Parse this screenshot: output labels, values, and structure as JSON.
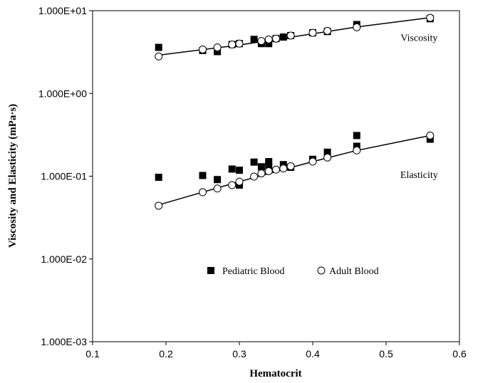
{
  "chart_data": {
    "type": "scatter",
    "scale": {
      "x": "linear",
      "y": "log"
    },
    "grid": false,
    "xlabel": "Hematocrit",
    "ylabel": "Viscosity and Elasticity (mPa·s)",
    "xlim": [
      0.1,
      0.6
    ],
    "ylim": [
      0.001,
      10
    ],
    "x_ticks": [
      0.1,
      0.2,
      0.3,
      0.4,
      0.5,
      0.6
    ],
    "x_tick_labels": [
      "0.1",
      "0.2",
      "0.3",
      "0.4",
      "0.5",
      "0.6"
    ],
    "y_ticks": [
      0.001,
      0.01,
      0.1,
      1,
      10
    ],
    "y_tick_labels": [
      "1.000E-03",
      "1.000E-02",
      "1.000E-01",
      "1.000E+00",
      "1.000E+01"
    ],
    "annotations": [
      {
        "text": "Viscosity",
        "x": 0.545,
        "y": 4.3
      },
      {
        "text": "Elasticity",
        "x": 0.545,
        "y": 0.095
      }
    ],
    "legend_position": "bottom-center",
    "series": [
      {
        "name": "Pediatric Blood",
        "marker": "square-filled",
        "color": "#000000",
        "points": [
          [
            0.19,
            3.6
          ],
          [
            0.25,
            3.3
          ],
          [
            0.27,
            3.2
          ],
          [
            0.29,
            3.9
          ],
          [
            0.3,
            4.0
          ],
          [
            0.32,
            4.5
          ],
          [
            0.33,
            4.0
          ],
          [
            0.34,
            4.0
          ],
          [
            0.35,
            4.6
          ],
          [
            0.36,
            4.8
          ],
          [
            0.37,
            5.0
          ],
          [
            0.4,
            5.4
          ],
          [
            0.42,
            5.6
          ],
          [
            0.46,
            6.8
          ],
          [
            0.56,
            8.0
          ],
          [
            0.19,
            0.097
          ],
          [
            0.25,
            0.102
          ],
          [
            0.27,
            0.091
          ],
          [
            0.29,
            0.122
          ],
          [
            0.3,
            0.118
          ],
          [
            0.3,
            0.078
          ],
          [
            0.32,
            0.148
          ],
          [
            0.33,
            0.13
          ],
          [
            0.34,
            0.15
          ],
          [
            0.34,
            0.135
          ],
          [
            0.36,
            0.138
          ],
          [
            0.37,
            0.128
          ],
          [
            0.4,
            0.16
          ],
          [
            0.42,
            0.195
          ],
          [
            0.46,
            0.31
          ],
          [
            0.46,
            0.23
          ],
          [
            0.56,
            0.28
          ]
        ]
      },
      {
        "name": "Adult Blood",
        "marker": "circle-open",
        "color": "#000000",
        "points": [
          [
            0.19,
            2.8
          ],
          [
            0.25,
            3.4
          ],
          [
            0.27,
            3.6
          ],
          [
            0.29,
            3.9
          ],
          [
            0.3,
            4.0
          ],
          [
            0.33,
            4.3
          ],
          [
            0.34,
            4.5
          ],
          [
            0.35,
            4.6
          ],
          [
            0.37,
            5.0
          ],
          [
            0.4,
            5.4
          ],
          [
            0.42,
            5.7
          ],
          [
            0.46,
            6.3
          ],
          [
            0.56,
            8.2
          ],
          [
            0.19,
            0.044
          ],
          [
            0.25,
            0.064
          ],
          [
            0.27,
            0.071
          ],
          [
            0.29,
            0.078
          ],
          [
            0.3,
            0.086
          ],
          [
            0.32,
            0.099
          ],
          [
            0.33,
            0.108
          ],
          [
            0.34,
            0.115
          ],
          [
            0.35,
            0.12
          ],
          [
            0.36,
            0.124
          ],
          [
            0.37,
            0.132
          ],
          [
            0.4,
            0.15
          ],
          [
            0.42,
            0.168
          ],
          [
            0.46,
            0.205
          ],
          [
            0.56,
            0.31
          ]
        ]
      }
    ],
    "fit_lines": [
      {
        "name": "Viscosity fit",
        "points": [
          [
            0.19,
            2.9
          ],
          [
            0.3,
            3.85
          ],
          [
            0.4,
            5.25
          ],
          [
            0.46,
            6.35
          ],
          [
            0.56,
            8.25
          ]
        ]
      },
      {
        "name": "Elasticity fit",
        "points": [
          [
            0.19,
            0.045
          ],
          [
            0.3,
            0.086
          ],
          [
            0.4,
            0.15
          ],
          [
            0.46,
            0.205
          ],
          [
            0.56,
            0.31
          ]
        ]
      }
    ]
  }
}
